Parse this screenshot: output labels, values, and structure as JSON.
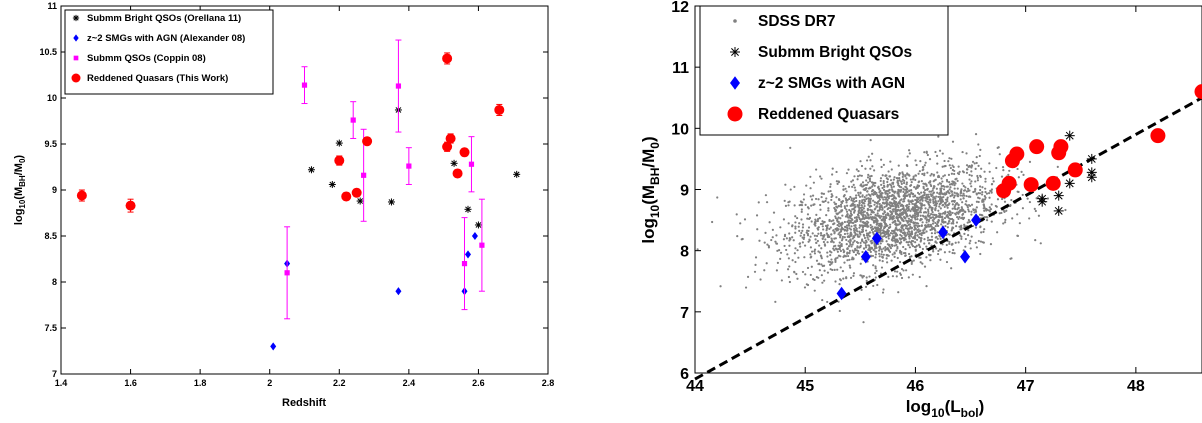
{
  "chart_data": [
    {
      "type": "scatter",
      "xlabel": "Redshift",
      "ylabel_main": "log",
      "ylabel_sub": "10",
      "ylabel_rest": "(M",
      "ylabel_sub2": "BH",
      "ylabel_rest2": "/M",
      "ylabel_sub3": "0",
      "ylabel_close": ")",
      "xlim": [
        1.4,
        2.8
      ],
      "ylim": [
        7,
        11
      ],
      "xticks": [
        "1.4",
        "1.6",
        "1.8",
        "2",
        "2.2",
        "2.4",
        "2.6",
        "2.8"
      ],
      "yticks": [
        "7",
        "7.5",
        "8",
        "8.5",
        "9",
        "9.5",
        "10",
        "10.5",
        "11"
      ],
      "legend_position": "top-left",
      "series": [
        {
          "name": "Submm Bright QSOs (Orellana 11)",
          "marker": "asterisk",
          "color": "#000000",
          "points": [
            [
              2.12,
              9.22
            ],
            [
              2.18,
              9.06
            ],
            [
              2.2,
              9.51
            ],
            [
              2.26,
              8.88
            ],
            [
              2.35,
              8.87
            ],
            [
              2.37,
              9.87
            ],
            [
              2.53,
              9.29
            ],
            [
              2.57,
              8.79
            ],
            [
              2.6,
              8.62
            ],
            [
              2.71,
              9.17
            ]
          ]
        },
        {
          "name": "z~2 SMGs with AGN (Alexander 08)",
          "marker": "diamond",
          "color": "#0000ff",
          "points": [
            [
              2.01,
              7.3
            ],
            [
              2.05,
              8.2
            ],
            [
              2.37,
              7.9
            ],
            [
              2.56,
              7.9
            ],
            [
              2.57,
              8.3
            ],
            [
              2.59,
              8.5
            ]
          ]
        },
        {
          "name": "Submm QSOs (Coppin 08)",
          "marker": "square",
          "color": "#ff00ff",
          "points": [
            [
              2.05,
              8.1,
              0.5
            ],
            [
              2.1,
              10.14,
              0.2
            ],
            [
              2.24,
              9.76,
              0.2
            ],
            [
              2.27,
              9.16,
              0.5
            ],
            [
              2.37,
              10.13,
              0.5
            ],
            [
              2.4,
              9.26,
              0.2
            ],
            [
              2.56,
              8.2,
              0.5
            ],
            [
              2.58,
              9.28,
              0.3
            ],
            [
              2.61,
              8.4,
              0.5
            ]
          ]
        },
        {
          "name": "Reddened Quasars (This Work)",
          "marker": "circle",
          "color": "#ff0000",
          "points": [
            [
              1.46,
              8.94,
              0.06
            ],
            [
              1.6,
              8.83,
              0.07
            ],
            [
              2.2,
              9.32,
              0.05
            ],
            [
              2.22,
              8.93,
              0.04
            ],
            [
              2.25,
              8.97,
              0.04
            ],
            [
              2.28,
              9.53,
              0.04
            ],
            [
              2.51,
              10.43,
              0.06
            ],
            [
              2.51,
              9.47,
              0.05
            ],
            [
              2.52,
              9.56,
              0.05
            ],
            [
              2.54,
              9.18,
              0.04
            ],
            [
              2.56,
              9.41,
              0.04
            ],
            [
              2.66,
              9.87,
              0.06
            ]
          ]
        }
      ]
    },
    {
      "type": "scatter",
      "xlabel_main": "log",
      "xlabel_sub": "10",
      "xlabel_rest": "(L",
      "xlabel_sub2": "bol",
      "xlabel_close": ")",
      "ylabel_main": "log",
      "ylabel_sub": "10",
      "ylabel_rest": "(M",
      "ylabel_sub2": "BH",
      "ylabel_rest2": "/M",
      "ylabel_sub3": "0",
      "ylabel_close": ")",
      "xlim": [
        44,
        48.6
      ],
      "ylim": [
        6,
        12
      ],
      "xticks": [
        "44",
        "45",
        "46",
        "47",
        "48"
      ],
      "yticks": [
        "6",
        "7",
        "8",
        "9",
        "10",
        "11",
        "12"
      ],
      "legend_position": "top-left",
      "dashed_line": [
        [
          44,
          5.9
        ],
        [
          48.6,
          10.5
        ]
      ],
      "series": [
        {
          "name": "SDSS DR7",
          "marker": "dot",
          "color": "#808080",
          "cloud": {
            "center": [
              45.8,
              8.55
            ],
            "spread": [
              0.45,
              0.45
            ],
            "count": 2600
          }
        },
        {
          "name": "Submm Bright QSOs",
          "marker": "asterisk",
          "color": "#000000",
          "points": [
            [
              47.15,
              8.85
            ],
            [
              47.15,
              8.8
            ],
            [
              47.3,
              8.65
            ],
            [
              47.3,
              8.9
            ],
            [
              47.4,
              9.1
            ],
            [
              47.4,
              9.88
            ],
            [
              47.6,
              9.28
            ],
            [
              47.6,
              9.5
            ],
            [
              47.6,
              9.2
            ]
          ]
        },
        {
          "name": "z~2 SMGs with AGN",
          "marker": "diamond",
          "color": "#0000ff",
          "points": [
            [
              45.33,
              7.3
            ],
            [
              45.55,
              7.9
            ],
            [
              45.65,
              8.2
            ],
            [
              46.25,
              8.3
            ],
            [
              46.45,
              7.9
            ],
            [
              46.55,
              8.5
            ]
          ]
        },
        {
          "name": "Reddened Quasars",
          "marker": "circle",
          "color": "#ff0000",
          "points": [
            [
              46.8,
              8.98
            ],
            [
              46.85,
              9.1
            ],
            [
              46.88,
              9.47
            ],
            [
              46.92,
              9.58
            ],
            [
              47.05,
              9.08
            ],
            [
              47.1,
              9.7
            ],
            [
              47.25,
              9.1
            ],
            [
              47.3,
              9.6
            ],
            [
              47.32,
              9.7
            ],
            [
              47.45,
              9.32
            ],
            [
              48.2,
              9.88
            ],
            [
              48.6,
              10.6
            ]
          ]
        }
      ]
    }
  ]
}
